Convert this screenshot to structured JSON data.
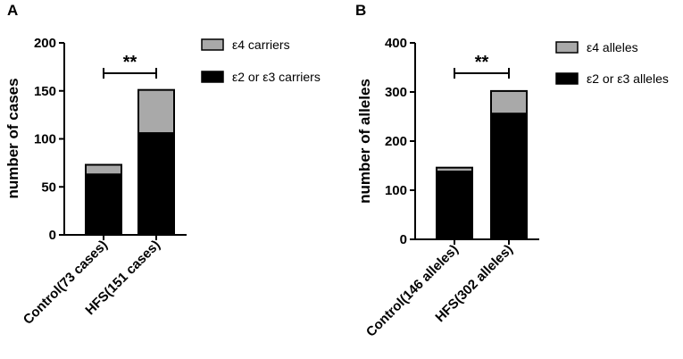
{
  "chart_data": [
    {
      "panel": "A",
      "type": "bar",
      "stacked": true,
      "categories": [
        "Control(73 cases)",
        "HFS(151 cases)"
      ],
      "series": [
        {
          "name": "ε2 or ε3 carriers",
          "values": [
            63,
            106
          ],
          "color": "#000000"
        },
        {
          "name": "ε4 carriers",
          "values": [
            10,
            45
          ],
          "color": "#a9a9a9"
        }
      ],
      "ylabel": "number of cases",
      "ylim": [
        0,
        200
      ],
      "yticks": [
        0,
        50,
        100,
        150,
        200
      ],
      "significance": "**",
      "legend_position": "top-right"
    },
    {
      "panel": "B",
      "type": "bar",
      "stacked": true,
      "categories": [
        "Control(146 alleles)",
        "HFS(302 alleles)"
      ],
      "series": [
        {
          "name": "ε2 or ε3 alleles",
          "values": [
            138,
            256
          ],
          "color": "#000000"
        },
        {
          "name": "ε4 alleles",
          "values": [
            8,
            46
          ],
          "color": "#a9a9a9"
        }
      ],
      "ylabel": "number of alleles",
      "ylim": [
        0,
        400
      ],
      "yticks": [
        0,
        100,
        200,
        300,
        400
      ],
      "significance": "**",
      "legend_position": "top-right"
    }
  ]
}
